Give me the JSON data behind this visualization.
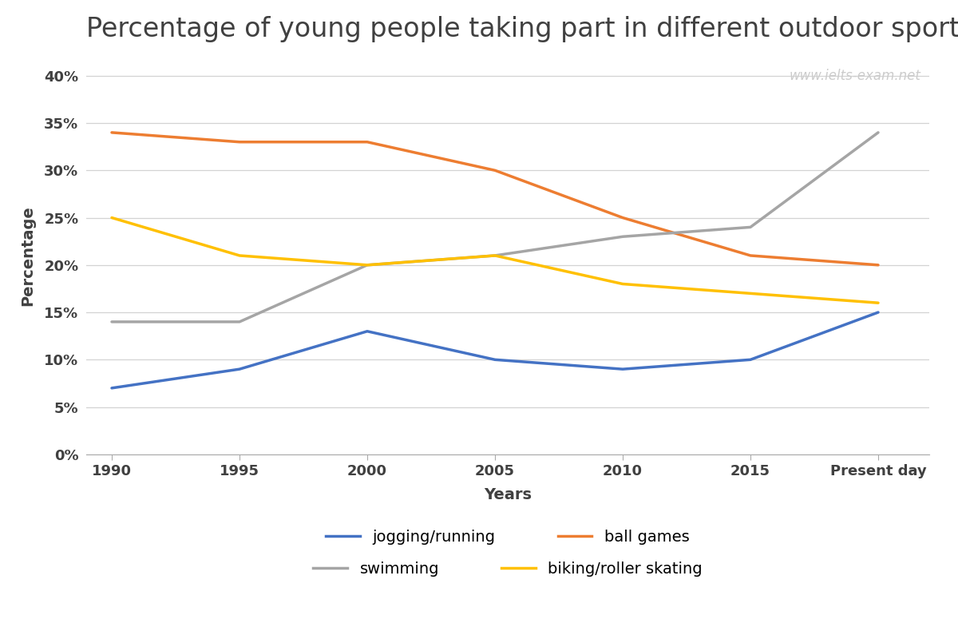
{
  "title": "Percentage of young people taking part in different outdoor sports",
  "xlabel": "Years",
  "ylabel": "Percentage",
  "watermark": "www.ielts-exam.net",
  "x_labels": [
    "1990",
    "1995",
    "2000",
    "2005",
    "2010",
    "2015",
    "Present day"
  ],
  "x_values": [
    0,
    1,
    2,
    3,
    4,
    5,
    6
  ],
  "series": [
    {
      "name": "jogging/running",
      "color": "#4472C4",
      "values": [
        7,
        9,
        13,
        10,
        9,
        10,
        15
      ]
    },
    {
      "name": "ball games",
      "color": "#ED7D31",
      "values": [
        34,
        33,
        33,
        30,
        25,
        21,
        20
      ]
    },
    {
      "name": "swimming",
      "color": "#A5A5A5",
      "values": [
        14,
        14,
        20,
        21,
        23,
        24,
        34
      ]
    },
    {
      "name": "biking/roller skating",
      "color": "#FFC000",
      "values": [
        25,
        21,
        20,
        21,
        18,
        17,
        16
      ]
    }
  ],
  "ylim": [
    0,
    42
  ],
  "yticks": [
    0,
    5,
    10,
    15,
    20,
    25,
    30,
    35,
    40
  ],
  "ytick_labels": [
    "0%",
    "5%",
    "10%",
    "15%",
    "20%",
    "25%",
    "30%",
    "35%",
    "40%"
  ],
  "background_color": "#ffffff",
  "grid_color": "#d3d3d3",
  "title_fontsize": 24,
  "title_color": "#404040",
  "axis_label_fontsize": 14,
  "tick_fontsize": 13,
  "legend_fontsize": 14,
  "watermark_color": "#cccccc",
  "line_width": 2.5
}
